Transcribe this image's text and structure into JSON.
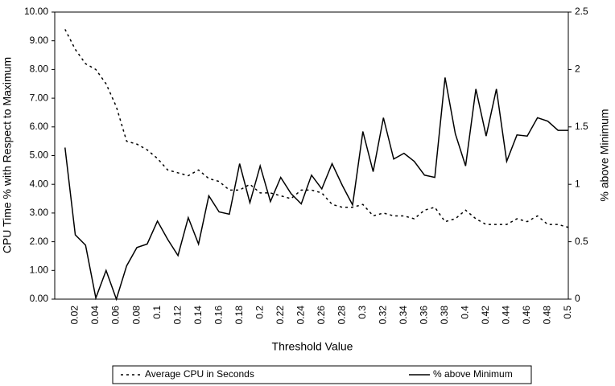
{
  "chart_data": {
    "type": "line",
    "x_label": "Threshold Value",
    "y_label": "CPU Time % with Respect to Maximum",
    "y2_label": "% above Minimum",
    "categories": [
      null,
      "0.02",
      null,
      "0.04",
      null,
      "0.06",
      null,
      "0.08",
      null,
      "0.1",
      null,
      "0.12",
      null,
      "0.14",
      null,
      "0.16",
      null,
      "0.18",
      null,
      "0.2",
      null,
      "0.22",
      null,
      "0.24",
      null,
      "0.26",
      null,
      "0.28",
      null,
      "0.3",
      null,
      "0.32",
      null,
      "0.34",
      null,
      "0.36",
      null,
      "0.38",
      null,
      "0.4",
      null,
      "0.42",
      null,
      "0.44",
      null,
      "0.46",
      null,
      "0.48",
      null,
      "0.5"
    ],
    "series": [
      {
        "name": "Average CPU in Seconds",
        "color": "#000000",
        "line_style": "dashed",
        "values": [
          9.4,
          8.7,
          8.2,
          8.0,
          7.5,
          6.7,
          5.5,
          5.4,
          5.2,
          4.9,
          4.5,
          4.4,
          4.3,
          4.5,
          4.2,
          4.1,
          3.8,
          3.8,
          4.0,
          3.7,
          3.7,
          3.6,
          3.5,
          3.8,
          3.8,
          3.7,
          3.3,
          3.2,
          3.2,
          3.3,
          2.9,
          3.0,
          2.9,
          2.9,
          2.8,
          3.1,
          3.2,
          2.7,
          2.8,
          3.1,
          2.8,
          2.6,
          2.6,
          2.6,
          2.8,
          2.7,
          2.9,
          2.6,
          2.6,
          2.5
        ]
      },
      {
        "name": "% above Minimum",
        "color": "#000000",
        "line_style": "solid",
        "axis": "y2",
        "values": [
          1.32,
          0.56,
          0.47,
          0.01,
          0.25,
          0.0,
          0.29,
          0.45,
          0.48,
          0.68,
          0.52,
          0.38,
          0.71,
          0.48,
          0.9,
          0.76,
          0.74,
          1.18,
          0.84,
          1.16,
          0.85,
          1.06,
          0.92,
          0.83,
          1.08,
          0.96,
          1.18,
          0.99,
          0.82,
          1.46,
          1.11,
          1.58,
          1.22,
          1.27,
          1.2,
          1.08,
          1.06,
          1.93,
          1.44,
          1.16,
          1.83,
          1.42,
          1.83,
          1.2,
          1.43,
          1.42,
          1.58,
          1.55,
          1.47,
          1.47
        ]
      }
    ],
    "ylim": [
      0,
      10
    ],
    "yticks": [
      {
        "value": 0,
        "label": "0.00"
      },
      {
        "value": 1,
        "label": "1.00"
      },
      {
        "value": 2,
        "label": "2.00"
      },
      {
        "value": 3,
        "label": "3.00"
      },
      {
        "value": 4,
        "label": "4.00"
      },
      {
        "value": 5,
        "label": "5.00"
      },
      {
        "value": 6,
        "label": "6.00"
      },
      {
        "value": 7,
        "label": "7.00"
      },
      {
        "value": 8,
        "label": "8.00"
      },
      {
        "value": 9,
        "label": "9.00"
      },
      {
        "value": 10,
        "label": "10.00"
      }
    ],
    "y2lim": [
      0,
      2.5
    ],
    "y2ticks": [
      0,
      0.5,
      1,
      1.5,
      2,
      2.5
    ],
    "grid": false,
    "legend": "bottom"
  }
}
